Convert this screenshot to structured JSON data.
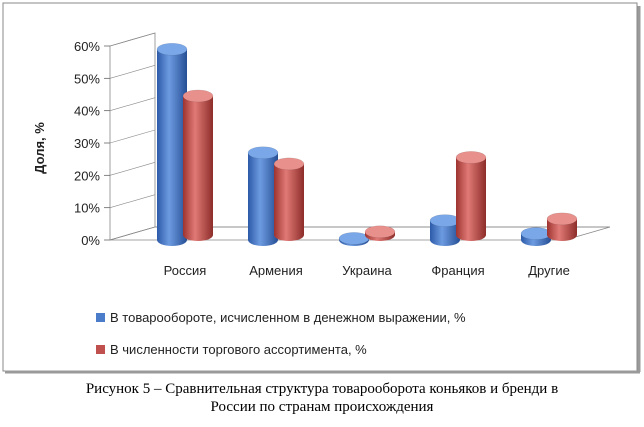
{
  "chart_data": {
    "type": "bar",
    "title": "",
    "xlabel": "",
    "ylabel": "Доля, %",
    "ylim": [
      0,
      60
    ],
    "yticks": [
      "0%",
      "10%",
      "20%",
      "30%",
      "40%",
      "50%",
      "60%"
    ],
    "ytick_values": [
      0,
      10,
      20,
      30,
      40,
      50,
      60
    ],
    "categories": [
      "Россия",
      "Армения",
      "Украина",
      "Франция",
      "Другие"
    ],
    "series": [
      {
        "name": "В товарообороте, исчисленном в денежном выражении, %",
        "values": [
          59,
          27,
          0.5,
          6,
          2
        ],
        "color": "#4a7cc9"
      },
      {
        "name": "В численности торгового ассортимента, %",
        "values": [
          43,
          22,
          1,
          24,
          5
        ],
        "color": "#c0504d"
      }
    ],
    "legend_position": "bottom",
    "grid": false
  },
  "caption": {
    "line1": "Рисунок 5  – Сравнительная структура товарооборота коньяков и бренди в",
    "line2": "России по странам происхождения"
  }
}
